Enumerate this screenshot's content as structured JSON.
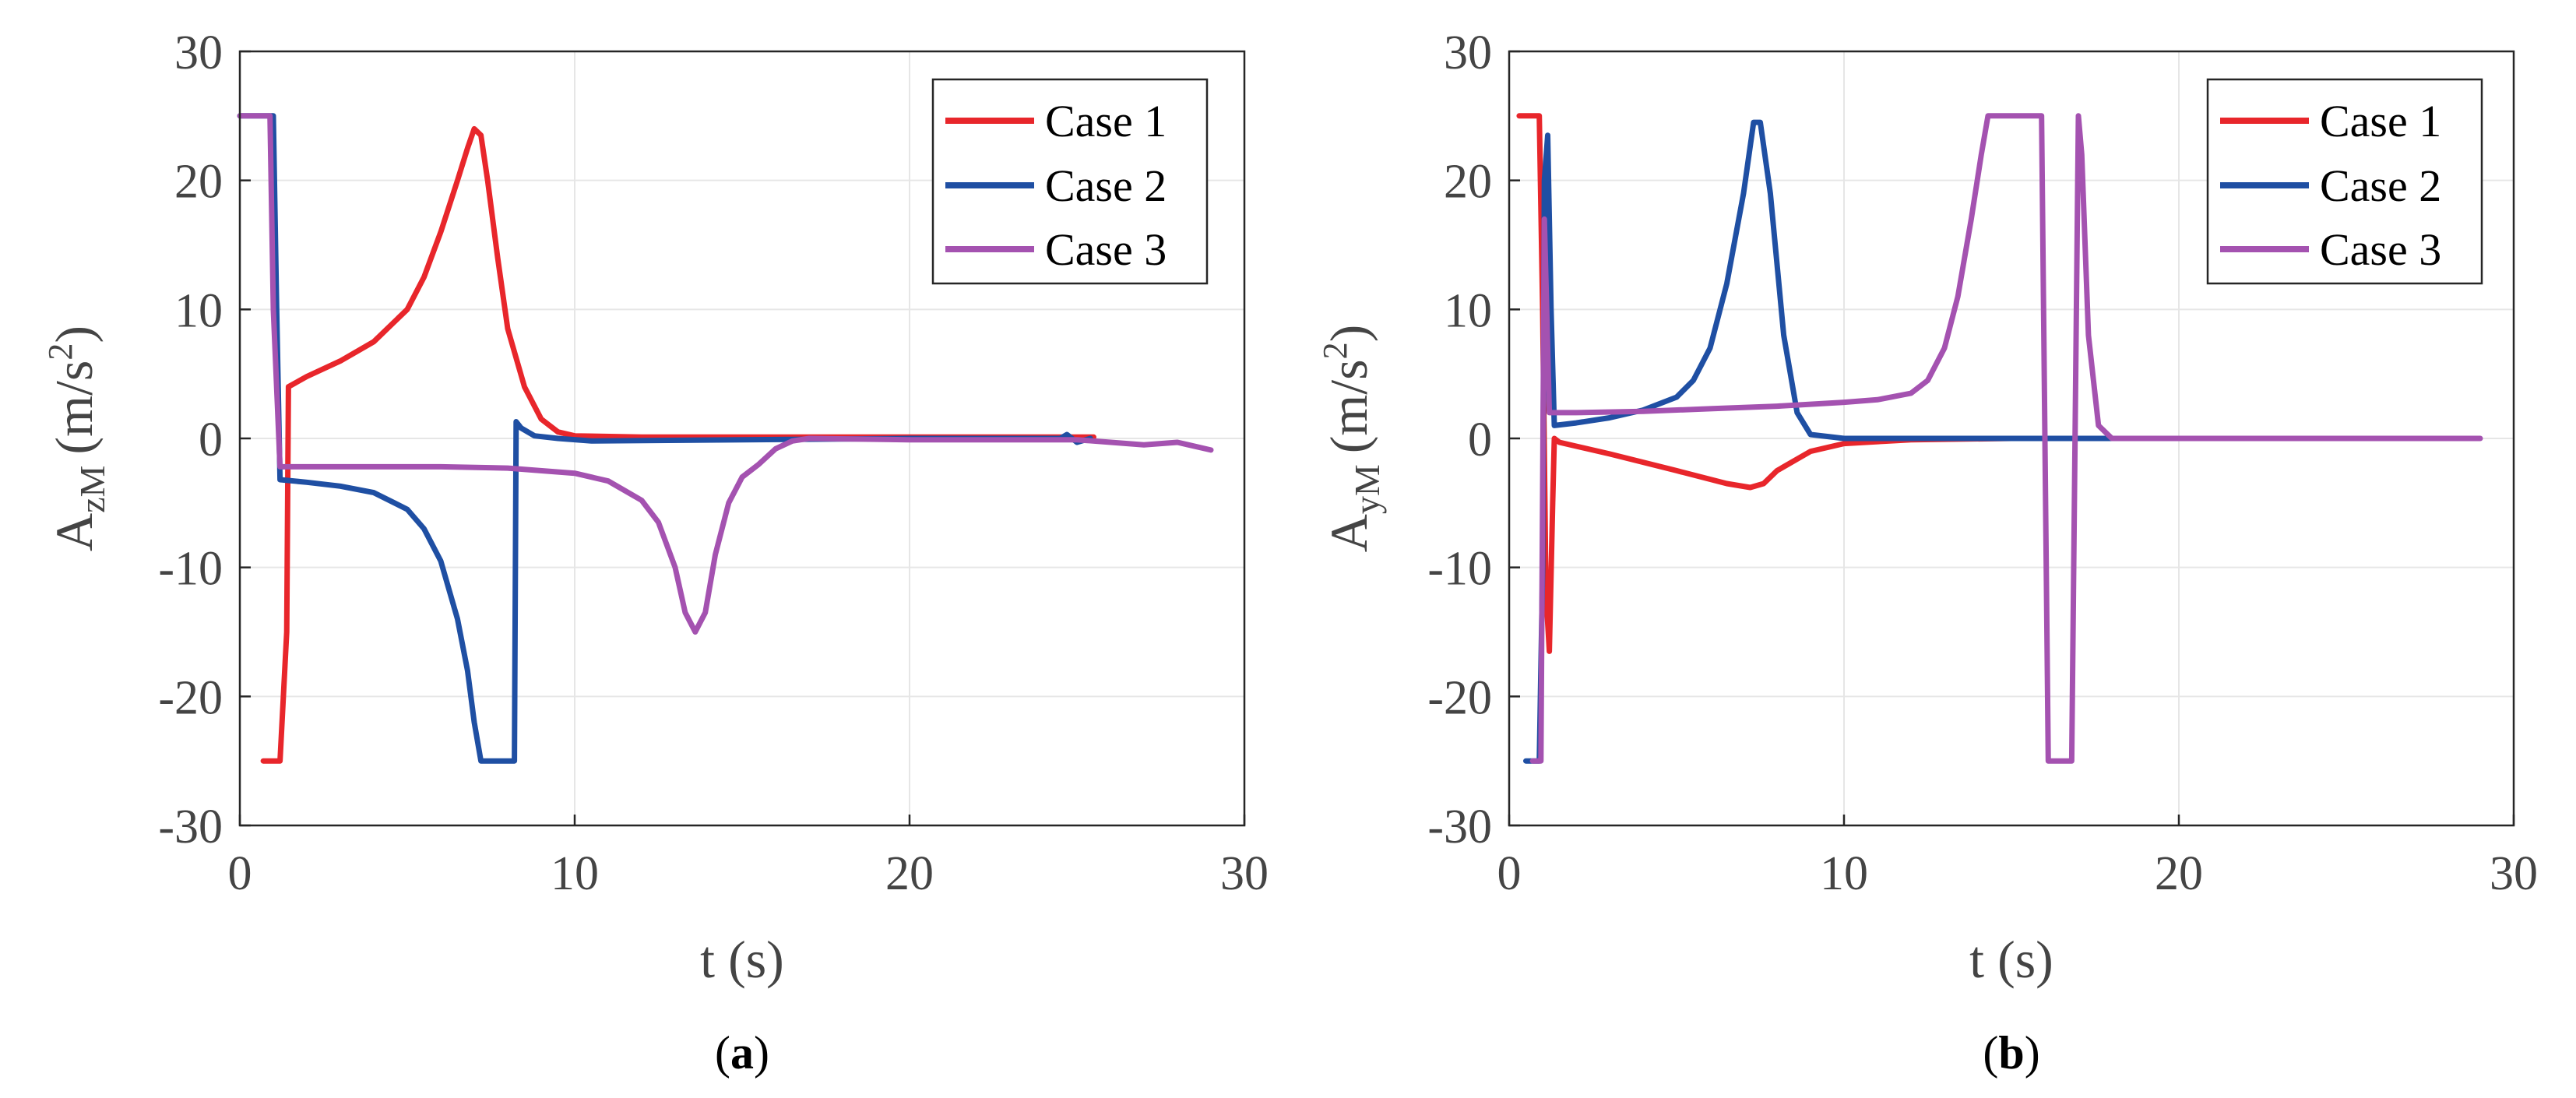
{
  "colors": {
    "case1": "#e8262b",
    "case2": "#1f4fa3",
    "case3": "#a452b0",
    "grid": "#e6e6e6",
    "axis": "#262626"
  },
  "chart_data": [
    {
      "type": "line",
      "caption_letter": "a",
      "ylabel_main": "A",
      "ylabel_sub": "zM",
      "ylabel_unit_open": "(m/s",
      "ylabel_unit_sup": "2",
      "ylabel_unit_close": ")",
      "xlabel": "t (s)",
      "xlim": [
        0,
        30
      ],
      "ylim": [
        -30,
        30
      ],
      "xticks": [
        "0",
        "10",
        "20",
        "30"
      ],
      "yticks": [
        "30",
        "20",
        "10",
        "0",
        "-10",
        "-20",
        "-30"
      ],
      "grid": true,
      "legend_position": "top-right",
      "series": [
        {
          "name": "Case 1",
          "color_key": "case1",
          "x": [
            0.7,
            1.1,
            1.2,
            1.4,
            1.45,
            2,
            3,
            4,
            5,
            5.5,
            6,
            6.5,
            6.8,
            7.0,
            7.2,
            7.4,
            7.7,
            8.0,
            8.5,
            9,
            9.5,
            10,
            12,
            15,
            20,
            25.5
          ],
          "y": [
            -25,
            -25,
            -25,
            -15,
            4,
            4.8,
            6,
            7.5,
            10,
            12.5,
            16,
            20,
            22.5,
            24,
            23.5,
            20,
            14,
            8.5,
            4,
            1.5,
            0.5,
            0.2,
            0.1,
            0.1,
            0.1,
            0.1
          ]
        },
        {
          "name": "Case 2",
          "color_key": "case2",
          "x": [
            0,
            0.9,
            1.0,
            1.1,
            1.2,
            2,
            3,
            4,
            5,
            5.5,
            6,
            6.5,
            6.8,
            7.0,
            7.2,
            7.4,
            8.2,
            8.25,
            8.4,
            8.8,
            9.5,
            10.5,
            15,
            20,
            24.5,
            24.7,
            25.0,
            25.4
          ],
          "y": [
            25,
            25,
            25,
            10,
            -3.2,
            -3.4,
            -3.7,
            -4.2,
            -5.5,
            -7,
            -9.5,
            -14,
            -18,
            -22,
            -25,
            -25,
            -25,
            1.3,
            0.8,
            0.2,
            0,
            -0.2,
            -0.1,
            0,
            0,
            0.3,
            -0.3,
            0
          ]
        },
        {
          "name": "Case 3",
          "color_key": "case3",
          "x": [
            0,
            0.8,
            0.9,
            1.0,
            1.2,
            2,
            4,
            6,
            8,
            10,
            11,
            12,
            12.5,
            13,
            13.3,
            13.6,
            13.9,
            14.2,
            14.6,
            15,
            15.5,
            16,
            16.5,
            17,
            20,
            25,
            27,
            28,
            29
          ],
          "y": [
            25,
            25,
            25,
            10,
            -2.2,
            -2.2,
            -2.2,
            -2.2,
            -2.3,
            -2.7,
            -3.3,
            -4.8,
            -6.5,
            -10,
            -13.5,
            -15,
            -13.5,
            -9,
            -5,
            -3,
            -2,
            -0.8,
            -0.2,
            0,
            -0.1,
            -0.1,
            -0.5,
            -0.3,
            -0.9
          ]
        }
      ]
    },
    {
      "type": "line",
      "caption_letter": "b",
      "ylabel_main": "A",
      "ylabel_sub": "yM",
      "ylabel_unit_open": "(m/s",
      "ylabel_unit_sup": "2",
      "ylabel_unit_close": ")",
      "xlabel": "t (s)",
      "xlim": [
        0,
        30
      ],
      "ylim": [
        -30,
        30
      ],
      "xticks": [
        "0",
        "10",
        "20",
        "30"
      ],
      "yticks": [
        "30",
        "20",
        "10",
        "0",
        "-10",
        "-20",
        "-30"
      ],
      "grid": true,
      "legend_position": "top-right",
      "series": [
        {
          "name": "Case 1",
          "color_key": "case1",
          "x": [
            0.3,
            0.9,
            1.0,
            1.1,
            1.2,
            1.3,
            1.35,
            1.5,
            3,
            5,
            6.5,
            7.2,
            7.6,
            8,
            9,
            10,
            12,
            15,
            20,
            25.5
          ],
          "y": [
            25,
            25,
            10,
            -12,
            -16.5,
            -5,
            0,
            -0.3,
            -1.2,
            -2.5,
            -3.5,
            -3.8,
            -3.5,
            -2.5,
            -1,
            -0.4,
            -0.1,
            0,
            0,
            0
          ]
        },
        {
          "name": "Case 2",
          "color_key": "case2",
          "x": [
            0.5,
            0.9,
            1.0,
            1.05,
            1.15,
            1.25,
            1.35,
            2,
            3,
            4,
            5,
            5.5,
            6,
            6.5,
            7,
            7.3,
            7.5,
            7.8,
            8.2,
            8.6,
            9,
            10,
            15,
            20,
            25.5
          ],
          "y": [
            -25,
            -25,
            -10,
            20,
            23.5,
            10,
            1,
            1.2,
            1.6,
            2.2,
            3.2,
            4.5,
            7,
            12,
            19,
            24.5,
            24.5,
            19,
            8,
            2,
            0.3,
            0,
            0,
            0,
            0
          ]
        },
        {
          "name": "Case 3",
          "color_key": "case3",
          "x": [
            0.7,
            0.95,
            1.05,
            1.2,
            2,
            4,
            6,
            8,
            10,
            11,
            12,
            12.5,
            13,
            13.4,
            13.8,
            14.1,
            14.3,
            14.6,
            15.5,
            15.9,
            16.0,
            16.1,
            16.8,
            16.9,
            17.0,
            17.1,
            17.3,
            17.6,
            18,
            20,
            25,
            29
          ],
          "y": [
            -25,
            -25,
            17,
            2,
            2,
            2.1,
            2.3,
            2.5,
            2.8,
            3,
            3.5,
            4.5,
            7,
            11,
            17,
            22,
            25,
            25,
            25,
            25,
            0,
            -25,
            -25,
            0,
            25,
            22,
            8,
            1,
            0,
            0,
            0,
            0
          ]
        }
      ]
    }
  ]
}
